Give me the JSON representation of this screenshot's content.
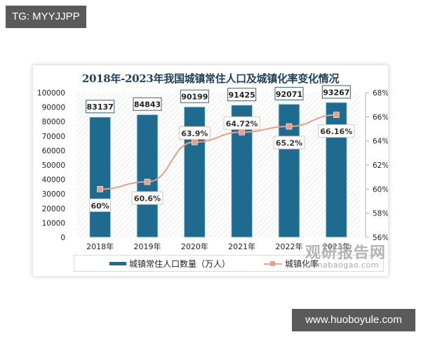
{
  "overlay": {
    "top_tag": "TG: MYYJJPP",
    "bottom_tag": "www.huoboyule.com"
  },
  "watermark": {
    "cn": "观研报告网",
    "en": "chinabaogao.com"
  },
  "chart_data": {
    "type": "bar+line",
    "title": "2018年-2023年我国城镇常住人口及城镇化率变化情况",
    "categories": [
      "2018年",
      "2019年",
      "2020年",
      "2021年",
      "2022年",
      "2023年"
    ],
    "series": [
      {
        "name": "城镇常住人口数量（万人）",
        "type": "bar",
        "axis": "left",
        "color": "#1f6a8f",
        "values": [
          83137,
          84843,
          90199,
          91425,
          92071,
          93267
        ],
        "labels": [
          "83137",
          "84843",
          "90199",
          "91425",
          "92071",
          "93267"
        ]
      },
      {
        "name": "城镇化率",
        "type": "line",
        "axis": "right",
        "color": "#e3a285",
        "values": [
          60.0,
          60.6,
          63.9,
          64.72,
          65.2,
          66.16
        ],
        "labels": [
          "60%",
          "60.6%",
          "63.9%",
          "64.72%",
          "65.2%",
          "66.16%"
        ]
      }
    ],
    "left_axis": {
      "ylim": [
        0,
        100000
      ],
      "ticks": [
        "100000",
        "90000",
        "80000",
        "70000",
        "60000",
        "50000",
        "40000",
        "30000",
        "20000",
        "10000",
        "0"
      ]
    },
    "right_axis": {
      "ylim": [
        56,
        68
      ],
      "ticks": [
        "68%",
        "66%",
        "64%",
        "62%",
        "60%",
        "58%",
        "56%"
      ]
    },
    "xlabel": "",
    "ylabel": "",
    "legend_position": "bottom",
    "grid": false,
    "background": "hatched"
  }
}
